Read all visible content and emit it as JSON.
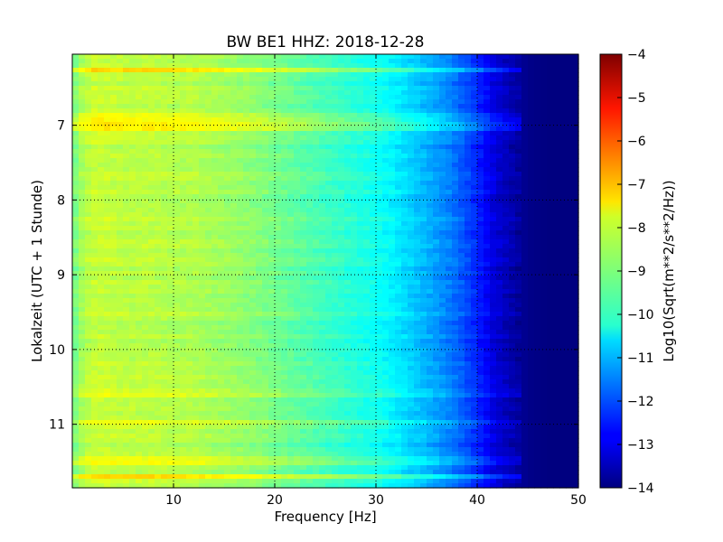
{
  "chart_data": {
    "type": "heatmap",
    "title": "BW BE1 HHZ: 2018-12-28",
    "xlabel": "Frequency [Hz]",
    "ylabel": "Lokalzeit (UTC + 1 Stunde)",
    "xlim": [
      0,
      50
    ],
    "ylim": [
      6.05,
      11.85
    ],
    "y_inverted": true,
    "x_ticks": [
      10,
      20,
      30,
      40,
      50
    ],
    "y_ticks": [
      7,
      8,
      9,
      10,
      11
    ],
    "grid": true,
    "colorbar": {
      "label": "Log10(Sqrt(m**2/s**2/Hz))",
      "min": -14,
      "max": -4,
      "ticks": [
        -4,
        -5,
        -6,
        -7,
        -8,
        -9,
        -10,
        -11,
        -12,
        -13,
        -14
      ],
      "colormap": "jet"
    },
    "spectrum_profile": {
      "frequency_hz": [
        0,
        1,
        2,
        3,
        5,
        8,
        10,
        12,
        15,
        18,
        20,
        22,
        25,
        27,
        30,
        32,
        34,
        36,
        38,
        40,
        41,
        42,
        44,
        45,
        47,
        50
      ],
      "log10_amplitude": [
        -9.2,
        -8.6,
        -8.3,
        -8.3,
        -8.4,
        -8.4,
        -8.5,
        -8.5,
        -8.7,
        -8.9,
        -9.1,
        -9.3,
        -9.6,
        -9.8,
        -10.1,
        -10.4,
        -10.8,
        -11.2,
        -11.7,
        -12.4,
        -12.8,
        -13.2,
        -13.7,
        -13.9,
        -14.0,
        -14.0
      ]
    },
    "disturbance_bands": [
      {
        "time_h": 6.27,
        "level_offset": 0.8
      },
      {
        "time_h": 6.9,
        "level_offset": 0.6
      },
      {
        "time_h": 7.0,
        "level_offset": 0.9
      },
      {
        "time_h": 10.58,
        "level_offset": 0.4
      },
      {
        "time_h": 11.0,
        "level_offset": 0.3
      },
      {
        "time_h": 11.5,
        "level_offset": 0.5
      },
      {
        "time_h": 11.7,
        "level_offset": 0.9
      }
    ]
  }
}
